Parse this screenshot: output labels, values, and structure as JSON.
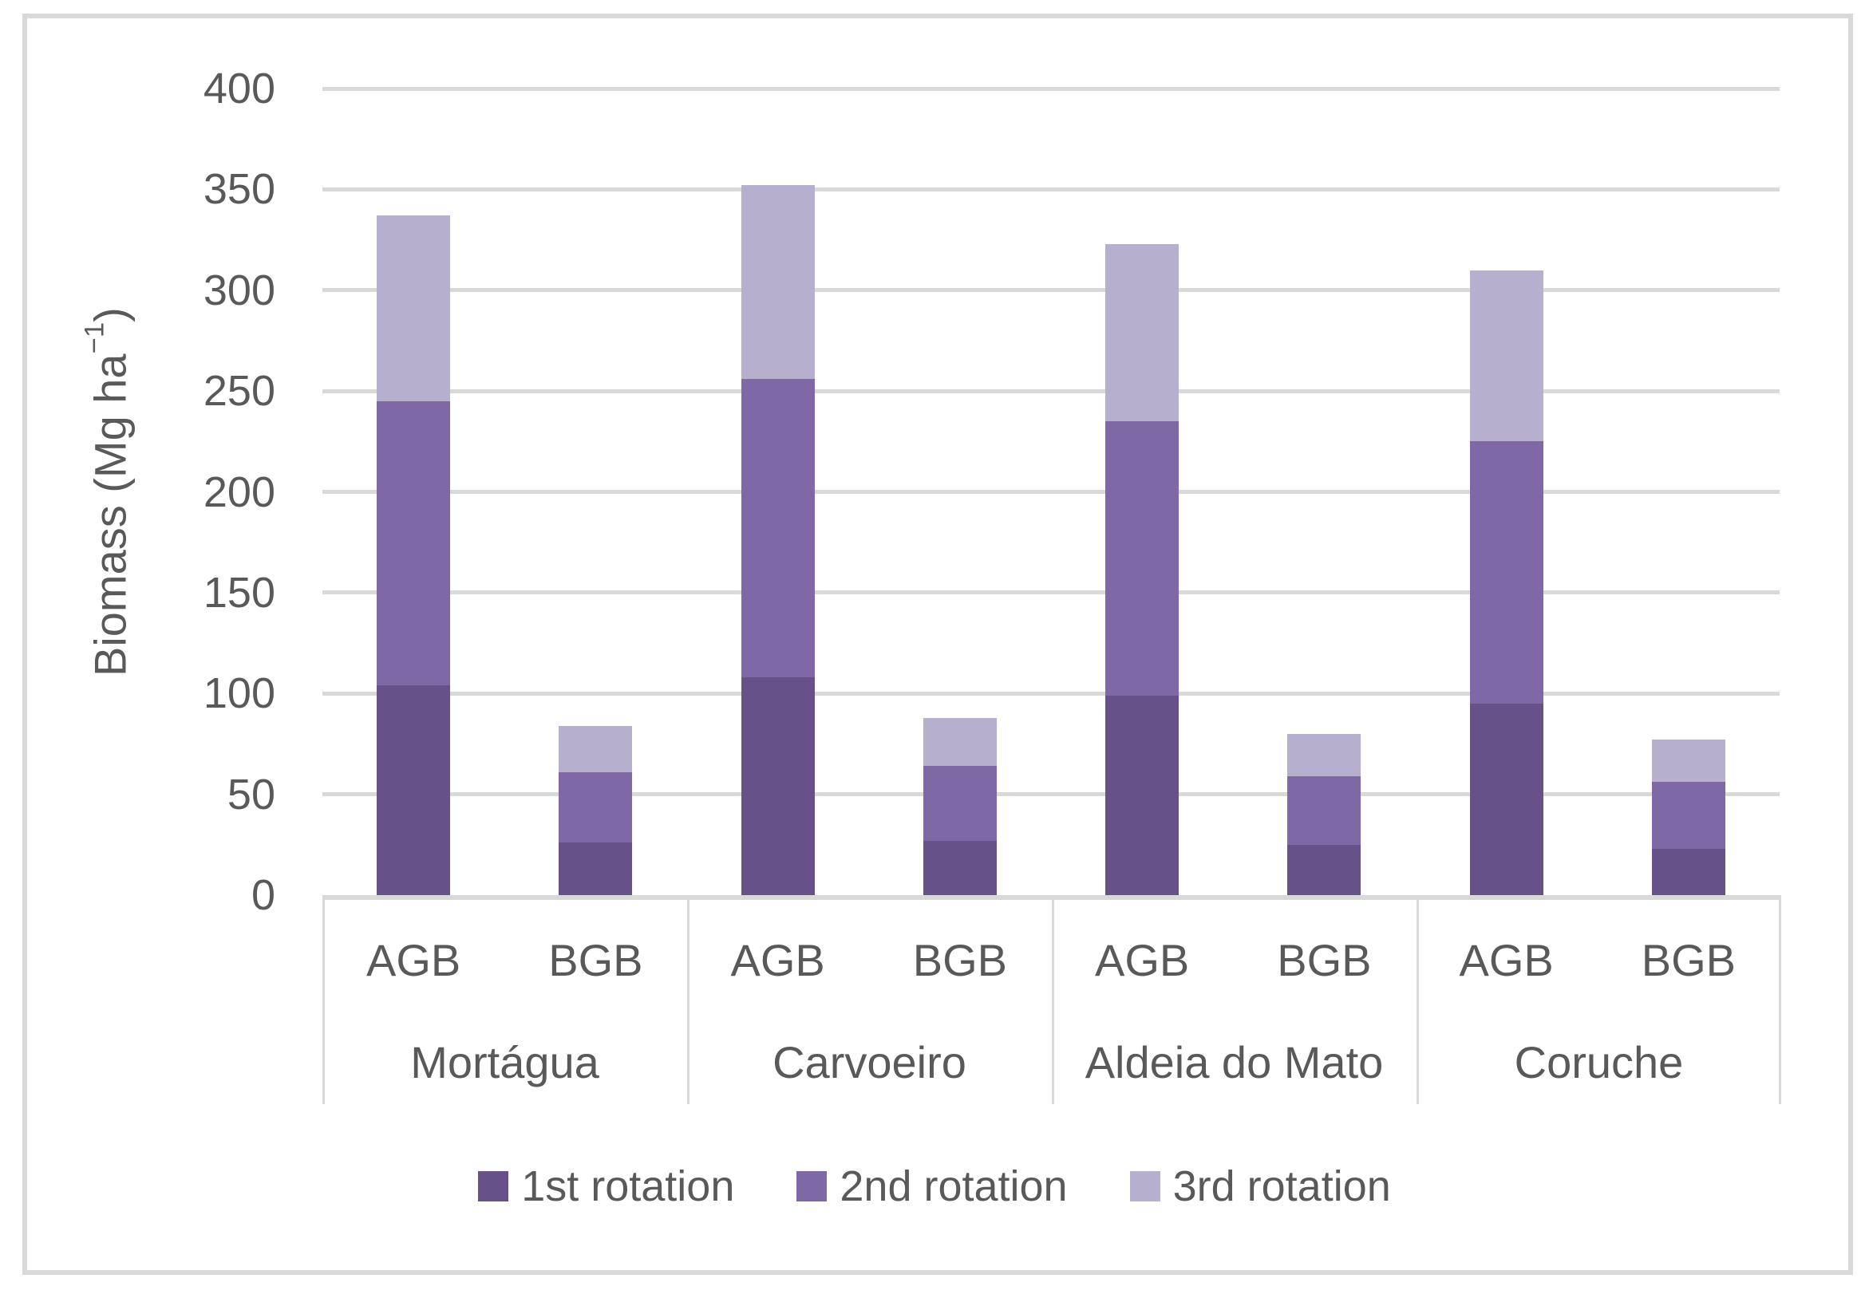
{
  "figure": {
    "y_axis_title": {
      "pre": "Biomass (Mg ha",
      "sup": "−1",
      "post": ")"
    }
  },
  "chart_data": {
    "type": "bar",
    "stacked": true,
    "title": "",
    "xlabel": "",
    "ylabel": "Biomass (Mg ha−1)",
    "ylim": [
      0,
      400
    ],
    "ytick_step": 50,
    "grid": true,
    "legend_position": "bottom",
    "sites": [
      "Mortágua",
      "Carvoeiro",
      "Aldeia do Mato",
      "Coruche"
    ],
    "groups": [
      "AGB",
      "BGB"
    ],
    "categories": [
      "Mortágua AGB",
      "Mortágua BGB",
      "Carvoeiro AGB",
      "Carvoeiro BGB",
      "Aldeia do Mato AGB",
      "Aldeia do Mato BGB",
      "Coruche AGB",
      "Coruche BGB"
    ],
    "series": [
      {
        "name": "1st rotation",
        "color": "#665288",
        "values": [
          104,
          26,
          108,
          27,
          99,
          25,
          95,
          23
        ]
      },
      {
        "name": "2nd rotation",
        "color": "#7e69a6",
        "values": [
          141,
          35,
          148,
          37,
          136,
          34,
          130,
          33
        ]
      },
      {
        "name": "3rd rotation",
        "color": "#b6afce",
        "values": [
          92,
          23,
          96,
          24,
          88,
          21,
          85,
          21
        ]
      }
    ],
    "stack_totals": [
      337,
      84,
      352,
      88,
      323,
      80,
      310,
      77
    ],
    "colors": {
      "gridline": "#d9d9d9",
      "axis_text": "#595959",
      "table_lines": "#d9d9d9",
      "figure_border": "#d9d9d9"
    }
  }
}
